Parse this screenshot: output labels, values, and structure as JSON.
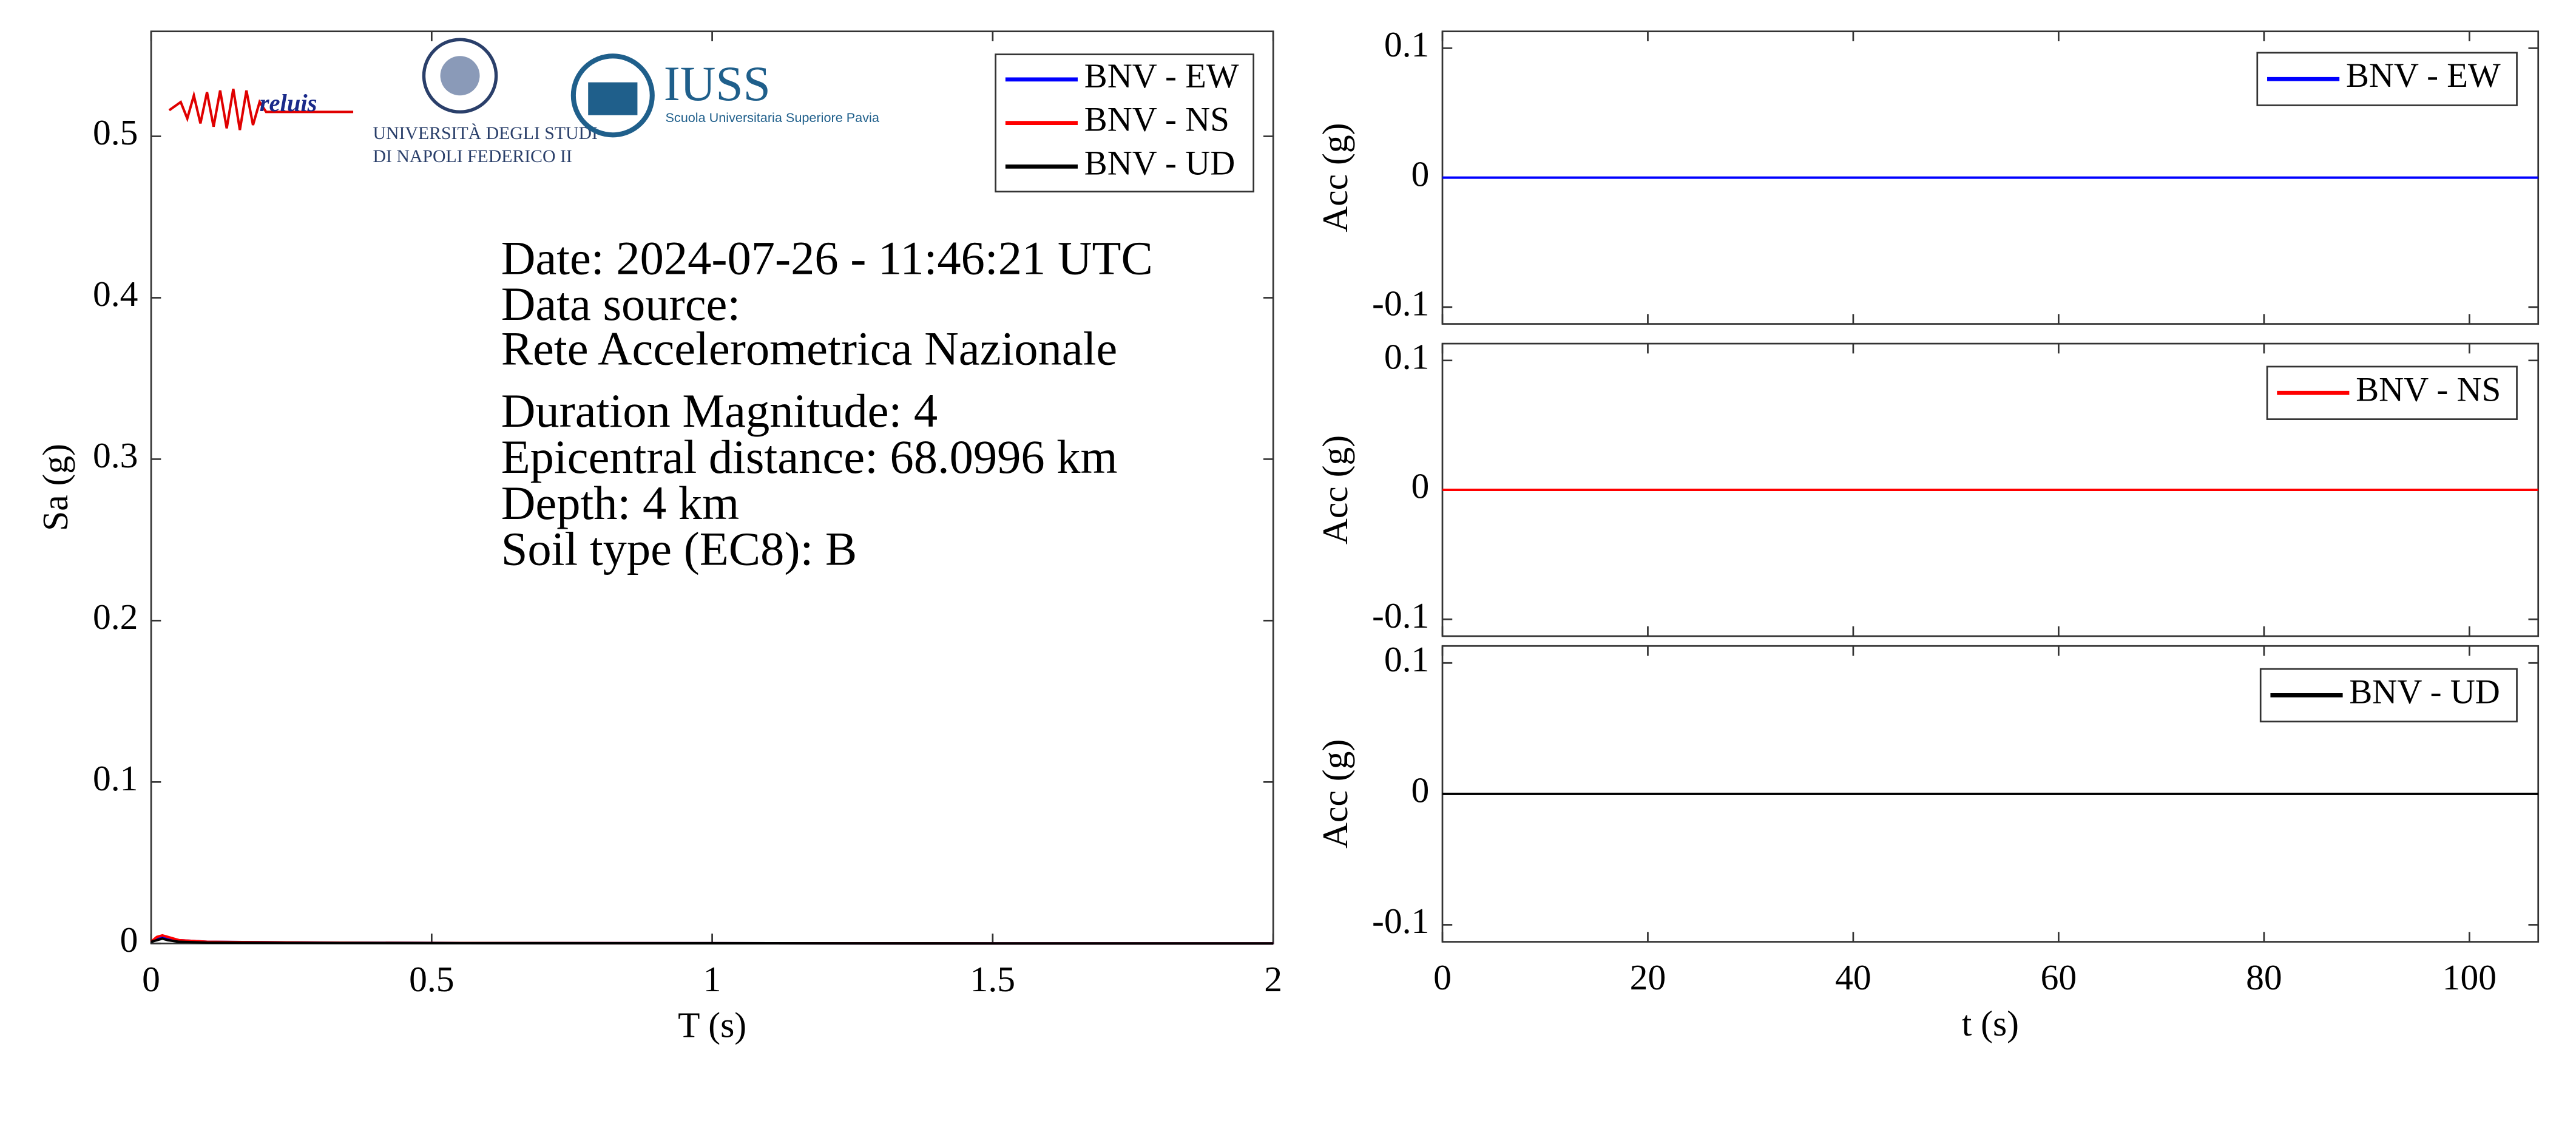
{
  "chart_data": [
    {
      "type": "line",
      "xlabel": "T (s)",
      "ylabel": "Sa (g)",
      "x": [
        0,
        0.01,
        0.02,
        0.03,
        0.05,
        0.1,
        0.3,
        0.5,
        1,
        1.5,
        2
      ],
      "xlim": [
        0,
        2
      ],
      "xticks": [
        0,
        0.5,
        1,
        1.5,
        2
      ],
      "ylim": [
        0,
        0.565
      ],
      "yticks": [
        0,
        0.1,
        0.2,
        0.3,
        0.4,
        0.5
      ],
      "series": [
        {
          "name": "BNV - EW",
          "color": "#0000ff",
          "values": [
            0.001,
            0.003,
            0.004,
            0.003,
            0.002,
            0.001,
            0.0005,
            0.0003,
            0.0001,
            0,
            0
          ]
        },
        {
          "name": "BNV - NS",
          "color": "#ff0000",
          "values": [
            0.001,
            0.004,
            0.005,
            0.004,
            0.002,
            0.001,
            0.0005,
            0.0003,
            0.0001,
            0,
            0
          ]
        },
        {
          "name": "BNV - UD",
          "color": "#000000",
          "values": [
            0.001,
            0.002,
            0.003,
            0.002,
            0.001,
            0.0005,
            0.0003,
            0.0002,
            0.0001,
            0,
            0
          ]
        }
      ],
      "annotations": [
        "Date: 2024-07-26 - 11:46:21 UTC",
        "Data source:",
        "Rete Accelerometrica Nazionale",
        "Duration Magnitude: 4",
        "Epicentral distance: 68.0996 km",
        "Depth: 4 km",
        "Soil type (EC8): B"
      ],
      "logos": [
        "reluis",
        "UNIVERSITÀ DEGLI STUDI",
        "DI NAPOLI FEDERICO II",
        "IUSS",
        "Scuola Universitaria Superiore Pavia"
      ]
    },
    {
      "type": "line",
      "ylabel": "Acc (g)",
      "x": [
        0,
        20,
        40,
        60,
        80,
        100,
        106.7
      ],
      "xlim": [
        0,
        106.7
      ],
      "xticks": [
        0,
        20,
        40,
        60,
        80,
        100
      ],
      "ylim": [
        -0.113,
        0.113
      ],
      "yticks": [
        -0.1,
        0,
        0.1
      ],
      "series": [
        {
          "name": "BNV - EW",
          "color": "#0000ff",
          "values": [
            0,
            0,
            0,
            0,
            0,
            0,
            0
          ]
        }
      ]
    },
    {
      "type": "line",
      "ylabel": "Acc (g)",
      "x": [
        0,
        20,
        40,
        60,
        80,
        100,
        106.7
      ],
      "xlim": [
        0,
        106.7
      ],
      "xticks": [
        0,
        20,
        40,
        60,
        80,
        100
      ],
      "ylim": [
        -0.113,
        0.113
      ],
      "yticks": [
        -0.1,
        0,
        0.1
      ],
      "series": [
        {
          "name": "BNV - NS",
          "color": "#ff0000",
          "values": [
            0,
            0,
            0,
            0,
            0,
            0,
            0
          ]
        }
      ]
    },
    {
      "type": "line",
      "xlabel": "t (s)",
      "ylabel": "Acc (g)",
      "x": [
        0,
        20,
        40,
        60,
        80,
        100,
        106.7
      ],
      "xlim": [
        0,
        106.7
      ],
      "xticks": [
        0,
        20,
        40,
        60,
        80,
        100
      ],
      "ylim": [
        -0.113,
        0.113
      ],
      "yticks": [
        -0.1,
        0,
        0.1
      ],
      "series": [
        {
          "name": "BNV - UD",
          "color": "#000000",
          "values": [
            0,
            0,
            0,
            0,
            0,
            0,
            0
          ]
        }
      ]
    }
  ]
}
